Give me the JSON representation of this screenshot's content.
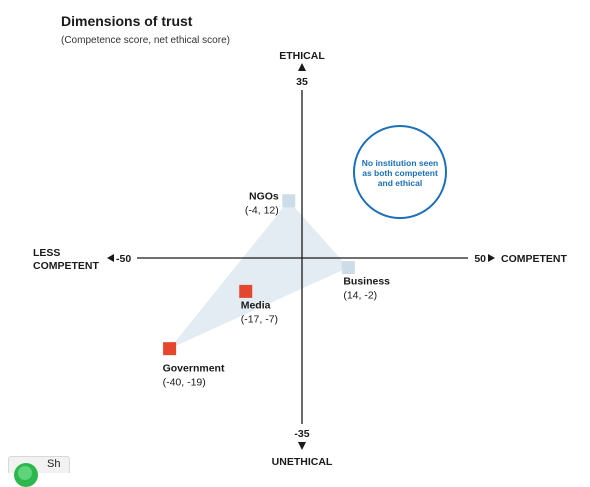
{
  "chart_data": {
    "type": "scatter",
    "title": "Dimensions of trust",
    "subtitle": "(Competence score, net ethical score)",
    "xlim": [
      -50,
      50
    ],
    "ylim": [
      -35,
      35
    ],
    "x_tick_labels": {
      "min": "-50",
      "max": "50"
    },
    "y_tick_labels": {
      "min": "-35",
      "max": "35"
    },
    "x_axis_labels": {
      "negative": [
        "LESS",
        "COMPETENT"
      ],
      "positive": "COMPETENT"
    },
    "y_axis_labels": {
      "positive": "ETHICAL",
      "negative": "UNETHICAL"
    },
    "points": [
      {
        "name": "NGOs",
        "coords": "(-4, 12)",
        "x": -4,
        "y": 12,
        "color": "#ccdde7"
      },
      {
        "name": "Business",
        "coords": "(14, -2)",
        "x": 14,
        "y": -2,
        "color": "#ccdde7"
      },
      {
        "name": "Media",
        "coords": "(-17, -7)",
        "x": -17,
        "y": -7,
        "color": "#e4472e"
      },
      {
        "name": "Government",
        "coords": "(-40, -19)",
        "x": -40,
        "y": -19,
        "color": "#e4472e"
      }
    ],
    "shaded_region": [
      "NGOs",
      "Business",
      "Government"
    ],
    "annotation": {
      "lines": [
        "No institution seen",
        "as both competent",
        "and ethical"
      ],
      "color": "#1a6fb8"
    }
  },
  "share": {
    "label": "Sh"
  },
  "colors": {
    "axis": "#1a1a1a",
    "region_fill": "#e2ecf2",
    "trust_marker": "#ccdde7",
    "distrust_marker": "#e4472e",
    "callout": "#1a6fb8"
  }
}
